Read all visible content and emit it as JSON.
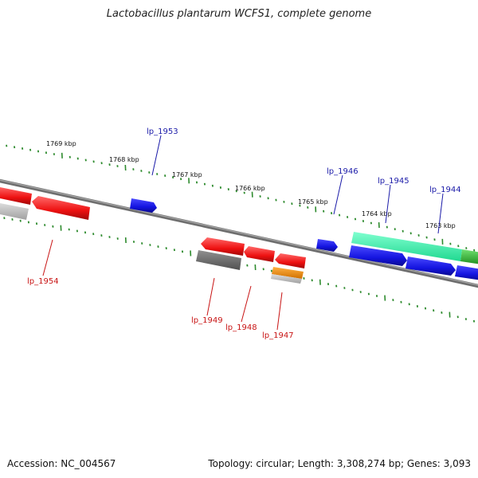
{
  "title": "Lactobacillus plantarum WCFS1, complete genome",
  "footer": {
    "accession": "Accession: NC_004567",
    "topology": "Topology: circular; Length: 3,308,274 bp; Genes: 3,093"
  },
  "scale_labels": [
    "1769 kbp",
    "1768 kbp",
    "1767 kbp",
    "1766 kbp",
    "1765 kbp",
    "1764 kbp",
    "1763 kbp"
  ],
  "gene_labels": {
    "lp_1953": "lp_1953",
    "lp_1946": "lp_1946",
    "lp_1945": "lp_1945",
    "lp_1944": "lp_1944",
    "lp_1954": "lp_1954",
    "lp_1949": "lp_1949",
    "lp_1948": "lp_1948",
    "lp_1947": "lp_1947"
  },
  "colors": {
    "backbone": "#808080",
    "forward_gene": "#1414e0",
    "reverse_gene": "#ee1111",
    "pseudo_gene": "#b0b0b0",
    "rna_gene": "#30e8a8",
    "other_gene": "#40c040",
    "orange_gene": "#f09010",
    "tick": "#2e8b2e"
  }
}
